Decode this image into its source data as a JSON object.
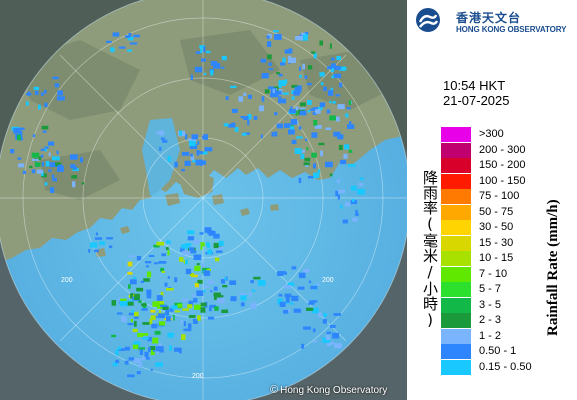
{
  "header": {
    "logo_cn": "香港天文台",
    "logo_en": "HONG KONG OBSERVATORY"
  },
  "timestamp": {
    "time": "10:54 HKT",
    "date": "21-07-2025"
  },
  "axis_labels": {
    "cn": "降雨率(毫米/小時)",
    "en": "Rainfall Rate (mm/h)"
  },
  "legend": [
    {
      "label": ">300",
      "color": "#e800e8"
    },
    {
      "label": "200 - 300",
      "color": "#c0006e"
    },
    {
      "label": "150 - 200",
      "color": "#d8002a"
    },
    {
      "label": "100 - 150",
      "color": "#ff1a00"
    },
    {
      "label": "75 - 100",
      "color": "#ff7a00"
    },
    {
      "label": "50 - 75",
      "color": "#ffa800"
    },
    {
      "label": "30 - 50",
      "color": "#ffd400"
    },
    {
      "label": "15 - 30",
      "color": "#d8d800"
    },
    {
      "label": "10 - 15",
      "color": "#a8e000"
    },
    {
      "label": "7 - 10",
      "color": "#60e800"
    },
    {
      "label": "5 - 7",
      "color": "#2ee02e"
    },
    {
      "label": "3 - 5",
      "color": "#12b848"
    },
    {
      "label": "2 - 3",
      "color": "#1a9a3a"
    },
    {
      "label": "1 - 2",
      "color": "#7ab4ff"
    },
    {
      "label": "0.50 - 1",
      "color": "#2e86ff"
    },
    {
      "label": "0.15 - 0.50",
      "color": "#18c8ff"
    }
  ],
  "map": {
    "range_ring_labels": [
      "200",
      "200",
      "200"
    ],
    "copyright": "Hong Kong Observatory",
    "colors": {
      "sea": "#5fb8e2",
      "land": "#8a9a78",
      "outside": "#556468"
    }
  }
}
